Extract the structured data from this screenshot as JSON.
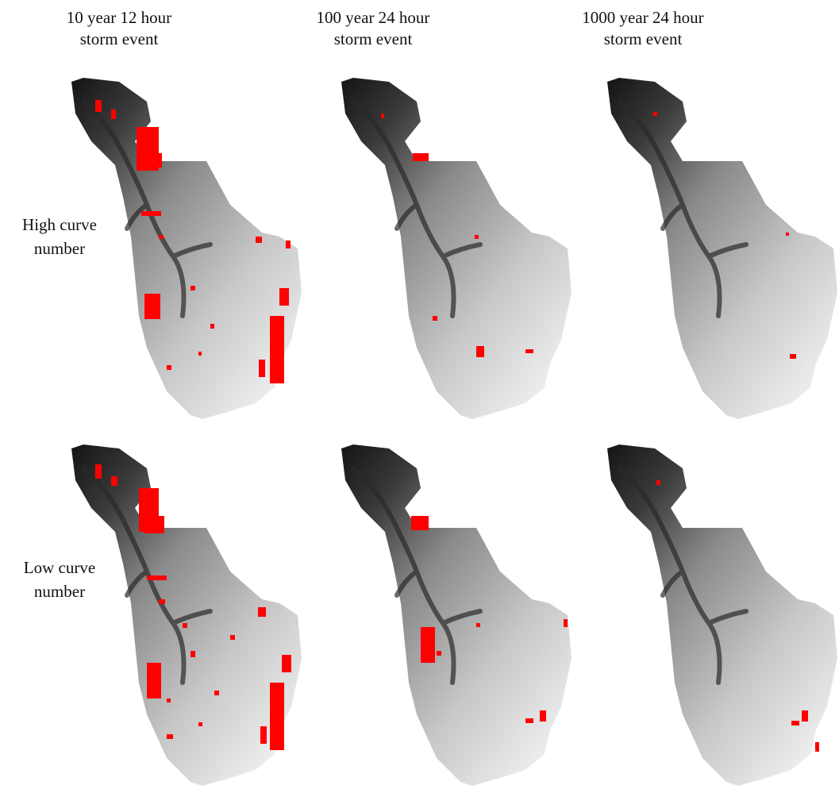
{
  "columns": [
    [
      "10 year 12 hour",
      "storm event"
    ],
    [
      "100 year 24 hour",
      "storm event"
    ],
    [
      "1000 year 24 hour",
      "storm event"
    ]
  ],
  "rows": [
    [
      "High curve",
      "number"
    ],
    [
      "Low curve",
      "number"
    ]
  ]
}
